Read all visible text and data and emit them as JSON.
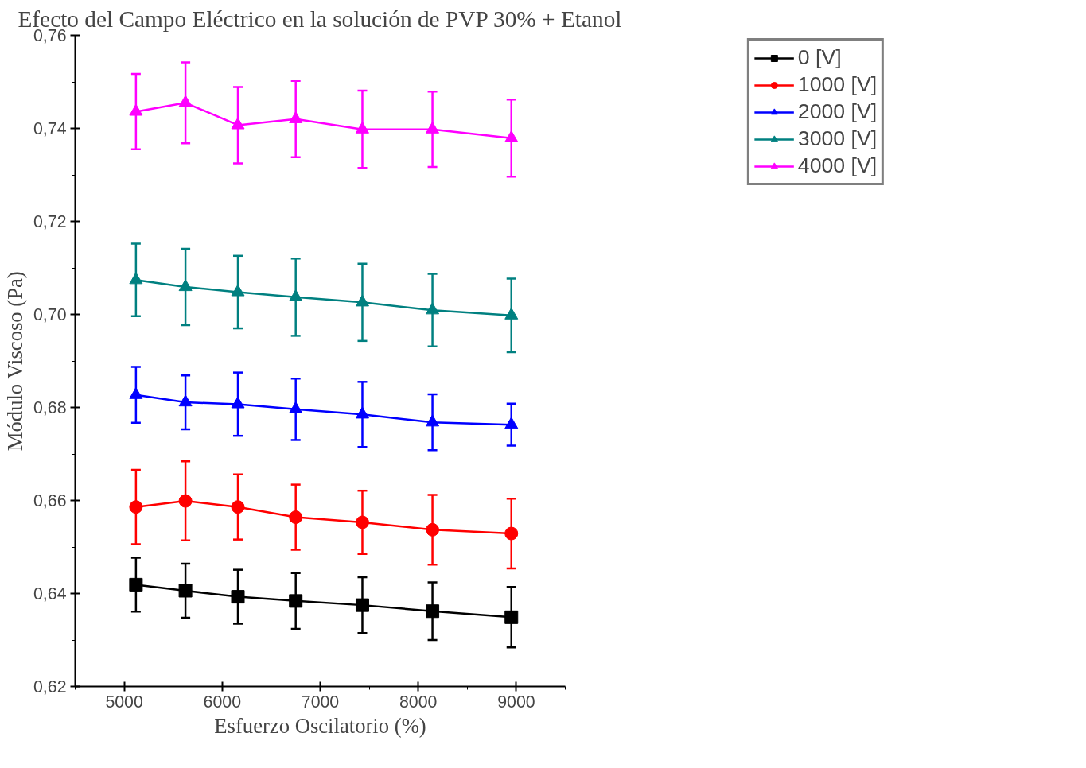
{
  "chart_data": {
    "type": "line",
    "title": "Efecto del Campo Eléctrico en la solución de PVP 30% + Etanol",
    "xlabel": "Esfuerzo Oscilatorio (%)",
    "ylabel": "Módulo Viscoso (Pa)",
    "x": [
      5120,
      5625,
      6160,
      6750,
      7430,
      8145,
      8950
    ],
    "series": [
      {
        "name": "0 [V]",
        "color": "#000000",
        "marker": "square",
        "values": [
          0.6419,
          0.6406,
          0.6393,
          0.6384,
          0.6375,
          0.6362,
          0.6349
        ],
        "errors": [
          0.0058,
          0.0058,
          0.0058,
          0.006,
          0.006,
          0.0062,
          0.0065
        ]
      },
      {
        "name": "1000 [V]",
        "color": "#ff0000",
        "marker": "circle",
        "values": [
          0.6586,
          0.6599,
          0.6586,
          0.6564,
          0.6553,
          0.6537,
          0.6529
        ],
        "errors": [
          0.008,
          0.0085,
          0.007,
          0.007,
          0.0068,
          0.0075,
          0.0075
        ]
      },
      {
        "name": "2000 [V]",
        "color": "#0000ff",
        "marker": "triangle",
        "values": [
          0.6827,
          0.6811,
          0.6807,
          0.6796,
          0.6785,
          0.6768,
          0.6763
        ],
        "errors": [
          0.006,
          0.0058,
          0.0068,
          0.0066,
          0.007,
          0.006,
          0.0045
        ]
      },
      {
        "name": "3000 [V]",
        "color": "#008080",
        "marker": "triangle",
        "values": [
          0.7074,
          0.7059,
          0.7048,
          0.7037,
          0.7026,
          0.7009,
          0.6998
        ],
        "errors": [
          0.0078,
          0.0082,
          0.0078,
          0.0083,
          0.0083,
          0.0078,
          0.0079
        ]
      },
      {
        "name": "4000 [V]",
        "color": "#ff00ff",
        "marker": "triangle",
        "values": [
          0.7436,
          0.7455,
          0.7407,
          0.742,
          0.7398,
          0.7398,
          0.7379
        ],
        "errors": [
          0.0081,
          0.0087,
          0.0082,
          0.0082,
          0.0083,
          0.0081,
          0.0083
        ]
      }
    ],
    "xlim": [
      4500,
      9500
    ],
    "xticks": [
      5000,
      6000,
      7000,
      8000,
      9000
    ],
    "ylim": [
      0.62,
      0.76
    ],
    "yticks": [
      {
        "value": 0.62,
        "label": "0,62"
      },
      {
        "value": 0.64,
        "label": "0,64"
      },
      {
        "value": 0.66,
        "label": "0,66"
      },
      {
        "value": 0.68,
        "label": "0,68"
      },
      {
        "value": 0.7,
        "label": "0,70"
      },
      {
        "value": 0.72,
        "label": "0,72"
      },
      {
        "value": 0.74,
        "label": "0,74"
      },
      {
        "value": 0.76,
        "label": "0,76"
      }
    ],
    "grid": false,
    "legend": "top right",
    "line_style": "solid"
  }
}
